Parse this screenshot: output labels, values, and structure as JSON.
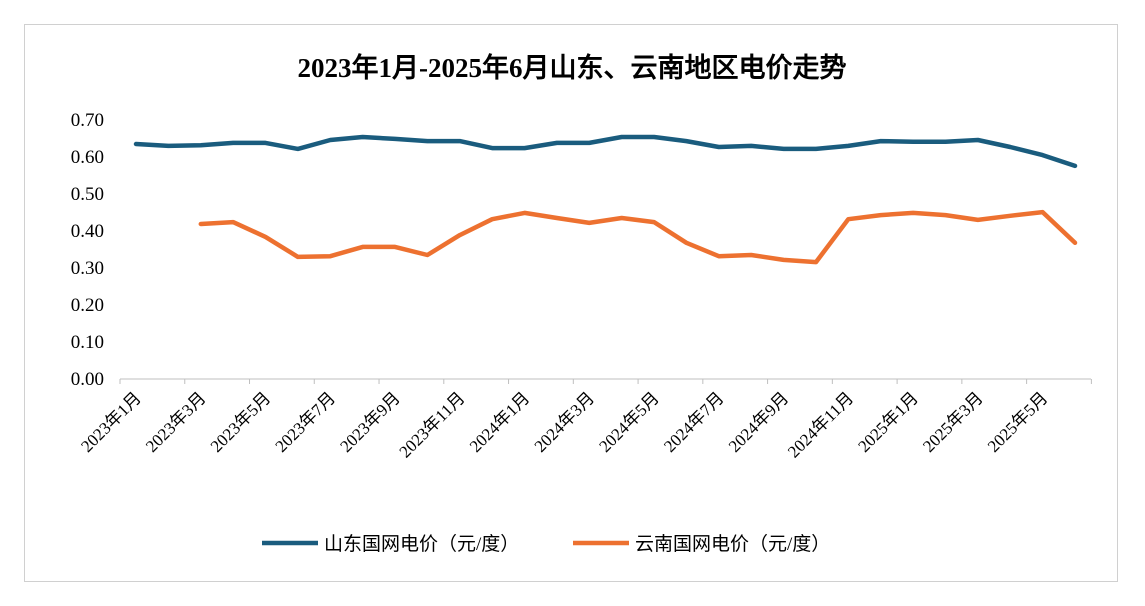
{
  "chart_data": {
    "type": "line",
    "title": "2023年1月-2025年6月山东、云南地区电价走势",
    "xlabel": "",
    "ylabel": "",
    "ylim": [
      0,
      0.7
    ],
    "yticks": [
      "0.00",
      "0.10",
      "0.20",
      "0.30",
      "0.40",
      "0.50",
      "0.60",
      "0.70"
    ],
    "x": [
      "2023年1月",
      "2023年2月",
      "2023年3月",
      "2023年4月",
      "2023年5月",
      "2023年6月",
      "2023年7月",
      "2023年8月",
      "2023年9月",
      "2023年10月",
      "2023年11月",
      "2023年12月",
      "2024年1月",
      "2024年2月",
      "2024年3月",
      "2024年4月",
      "2024年5月",
      "2024年6月",
      "2024年7月",
      "2024年8月",
      "2024年9月",
      "2024年10月",
      "2024年11月",
      "2024年12月",
      "2025年1月",
      "2025年2月",
      "2025年3月",
      "2025年4月",
      "2025年5月",
      "2025年6月"
    ],
    "xtick_labels": [
      "2023年1月",
      "2023年3月",
      "2023年5月",
      "2023年7月",
      "2023年9月",
      "2023年11月",
      "2024年1月",
      "2024年3月",
      "2024年5月",
      "2024年7月",
      "2024年9月",
      "2024年11月",
      "2025年1月",
      "2025年3月",
      "2025年5月"
    ],
    "series": [
      {
        "name": "山东国网电价（元/度）",
        "color": "#1a5c7e",
        "values": [
          0.635,
          0.63,
          0.632,
          0.638,
          0.638,
          0.622,
          0.646,
          0.654,
          0.649,
          0.643,
          0.643,
          0.624,
          0.624,
          0.638,
          0.638,
          0.654,
          0.654,
          0.643,
          0.627,
          0.63,
          0.622,
          0.622,
          0.63,
          0.643,
          0.641,
          0.641,
          0.646,
          0.627,
          0.605,
          0.576
        ]
      },
      {
        "name": "云南国网电价（元/度）",
        "color": "#ed7130",
        "values": [
          null,
          null,
          0.419,
          0.424,
          0.384,
          0.33,
          0.332,
          0.357,
          0.357,
          0.335,
          0.389,
          0.432,
          0.449,
          0.435,
          0.422,
          0.435,
          0.424,
          0.368,
          0.332,
          0.335,
          0.322,
          0.316,
          0.432,
          0.443,
          0.449,
          0.443,
          0.43,
          0.441,
          0.451,
          0.368
        ]
      }
    ],
    "grid": false,
    "legend": "bottom"
  }
}
